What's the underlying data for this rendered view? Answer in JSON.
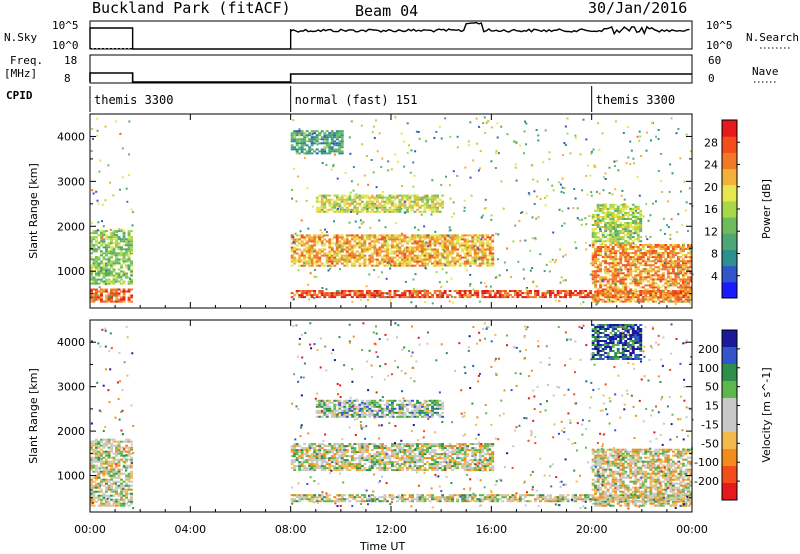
{
  "header": {
    "station": "Buckland Park (fitACF)",
    "beam": "Beam 04",
    "date": "30/Jan/2016"
  },
  "strips": {
    "nsky_label": "N.Sky",
    "nsky_top": "10^5",
    "nsky_bot": "10^0",
    "nsearch_label": "N.Search",
    "freq_label": "Freq.",
    "freq_unit": "[MHz]",
    "freq_top": "18",
    "freq_bot": "8",
    "nave_label": "Nave",
    "nave_top": "60",
    "nave_bot": "0",
    "cpid_label": "CPID"
  },
  "modes": [
    {
      "label": "themis 3300",
      "start": 0.0,
      "end": 8.0
    },
    {
      "label": "normal (fast) 151",
      "start": 8.0,
      "end": 20.0
    },
    {
      "label": "themis 3300",
      "start": 20.0,
      "end": 24.0
    }
  ],
  "colors": {
    "power": [
      "#1a1aff",
      "#3355cc",
      "#2e8f8f",
      "#4da673",
      "#6dbb5c",
      "#a8d84a",
      "#e6e64d",
      "#f2b13a",
      "#f27a26",
      "#f24d1a",
      "#e61a1a"
    ],
    "velocity": [
      "#e61a1a",
      "#f24d1a",
      "#f28c1a",
      "#f2b94d",
      "#c8c8c8",
      "#c8c8c8",
      "#5cb84d",
      "#2e8f4d",
      "#3355cc",
      "#1a1a99"
    ]
  },
  "chart_data": [
    {
      "type": "heatmap",
      "title": "",
      "xlabel": "Time UT",
      "ylabel": "Slant Range [km]",
      "xlim": [
        0,
        24
      ],
      "ylim": [
        180,
        4500
      ],
      "xticks": [
        "00:00",
        "04:00",
        "08:00",
        "12:00",
        "16:00",
        "20:00",
        "00:00"
      ],
      "yticks": [
        1000,
        2000,
        3000,
        4000
      ],
      "colorbar_label": "Power [dB]",
      "colorbar_ticks": [
        4,
        8,
        12,
        16,
        20,
        24,
        28
      ],
      "colorbar_range": [
        0,
        32
      ],
      "data_coverage": [
        [
          0.0,
          1.7
        ],
        [
          8.0,
          24.0
        ]
      ],
      "regions": [
        {
          "t0": 0.0,
          "t1": 1.7,
          "r0": 700,
          "r1": 1900,
          "val": 14
        },
        {
          "t0": 0.0,
          "t1": 1.7,
          "r0": 300,
          "r1": 600,
          "val": 26
        },
        {
          "t0": 8.0,
          "t1": 16.0,
          "r0": 1100,
          "r1": 1800,
          "val": 22
        },
        {
          "t0": 8.0,
          "t1": 24.0,
          "r0": 400,
          "r1": 550,
          "val": 28
        },
        {
          "t0": 9.0,
          "t1": 14.0,
          "r0": 2300,
          "r1": 2700,
          "val": 18
        },
        {
          "t0": 8.0,
          "t1": 10.0,
          "r0": 3600,
          "r1": 4100,
          "val": 10
        },
        {
          "t0": 20.0,
          "t1": 24.0,
          "r0": 300,
          "r1": 1600,
          "val": 24
        },
        {
          "t0": 20.0,
          "t1": 22.0,
          "r0": 1600,
          "r1": 2500,
          "val": 16
        }
      ]
    },
    {
      "type": "heatmap",
      "title": "",
      "xlabel": "Time UT",
      "ylabel": "Slant Range [km]",
      "xlim": [
        0,
        24
      ],
      "ylim": [
        180,
        4500
      ],
      "xticks": [
        "00:00",
        "04:00",
        "08:00",
        "12:00",
        "16:00",
        "20:00",
        "00:00"
      ],
      "yticks": [
        1000,
        2000,
        3000,
        4000
      ],
      "colorbar_label": "Velocity [m s^-1]",
      "colorbar_ticks": [
        200,
        100,
        50,
        15,
        -15,
        -50,
        -100,
        -200
      ],
      "colorbar_range": [
        -250,
        250
      ],
      "data_coverage": [
        [
          0.0,
          1.7
        ],
        [
          8.0,
          24.0
        ]
      ],
      "regions": [
        {
          "t0": 0.0,
          "t1": 1.7,
          "r0": 300,
          "r1": 1800,
          "val": 0
        },
        {
          "t0": 8.0,
          "t1": 16.0,
          "r0": 1100,
          "r1": 1700,
          "val": 0
        },
        {
          "t0": 8.0,
          "t1": 24.0,
          "r0": 400,
          "r1": 550,
          "val": 0
        },
        {
          "t0": 9.0,
          "t1": 14.0,
          "r0": 2300,
          "r1": 2700,
          "val": 60
        },
        {
          "t0": 20.0,
          "t1": 24.0,
          "r0": 300,
          "r1": 1600,
          "val": -20
        },
        {
          "t0": 20.0,
          "t1": 22.0,
          "r0": 3600,
          "r1": 4400,
          "val": 180
        }
      ]
    }
  ]
}
